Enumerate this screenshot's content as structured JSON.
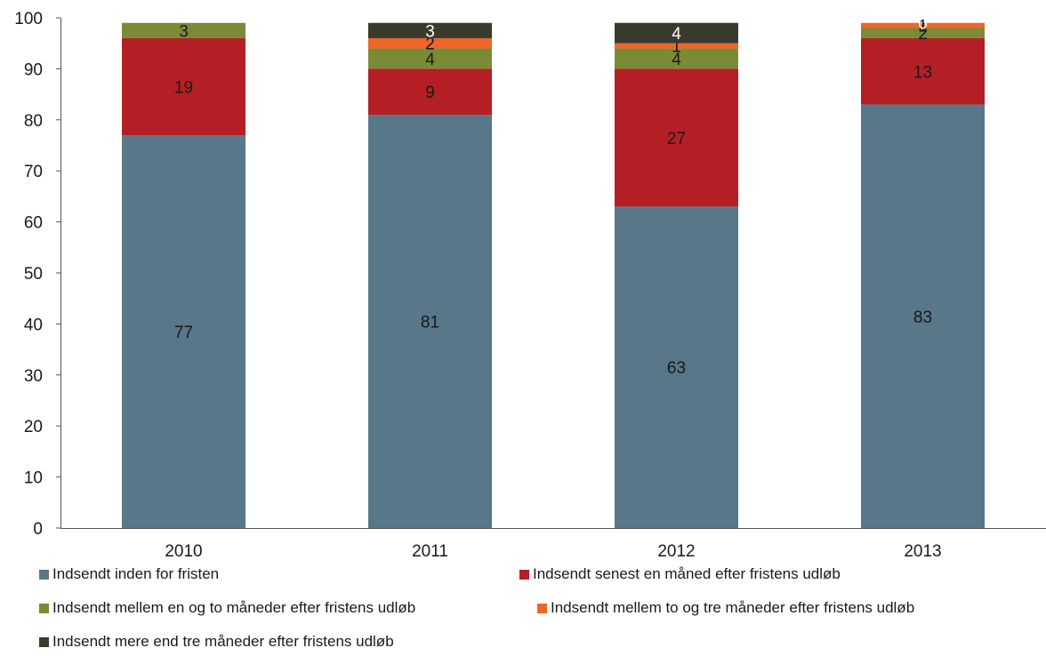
{
  "chart_data": {
    "type": "bar",
    "stacked": true,
    "categories": [
      "2010",
      "2011",
      "2012",
      "2013"
    ],
    "series": [
      {
        "name": "Indsendt inden for fristen",
        "color": "#587789",
        "values": [
          77,
          81,
          63,
          83
        ],
        "labels": [
          "77",
          "81",
          "63",
          "83"
        ],
        "label_color": "#1a1a1a"
      },
      {
        "name": "Indsendt senest en måned efter fristens udløb",
        "color": "#b31f25",
        "values": [
          19,
          9,
          27,
          13
        ],
        "labels": [
          "19",
          "9",
          "27",
          "13"
        ],
        "label_color": "#1a1a1a"
      },
      {
        "name": "Indsendt mellem en og to måneder efter fristens udløb",
        "color": "#7b8b35",
        "values": [
          3,
          4,
          4,
          2
        ],
        "labels": [
          "3",
          "4",
          "4",
          "2"
        ],
        "label_color": "#1a1a1a"
      },
      {
        "name": "Indsendt mellem to og tre måneder efter fristens udløb",
        "color": "#f0652a",
        "values": [
          0,
          2,
          1,
          1
        ],
        "labels": [
          "",
          "2",
          "1",
          "1"
        ],
        "label_color": "#1a1a1a"
      },
      {
        "name": "Indsendt mere end tre måneder efter fristens udløb",
        "color": "#3a3a2c",
        "values": [
          0,
          3,
          4,
          0
        ],
        "labels": [
          "",
          "3",
          "4",
          "0"
        ],
        "label_color": "#ffffff"
      }
    ],
    "ylim": [
      0,
      100
    ],
    "yticks": [
      "0",
      "10",
      "20",
      "30",
      "40",
      "50",
      "60",
      "70",
      "80",
      "90",
      "100"
    ],
    "grid": false,
    "legend_position": "bottom"
  }
}
